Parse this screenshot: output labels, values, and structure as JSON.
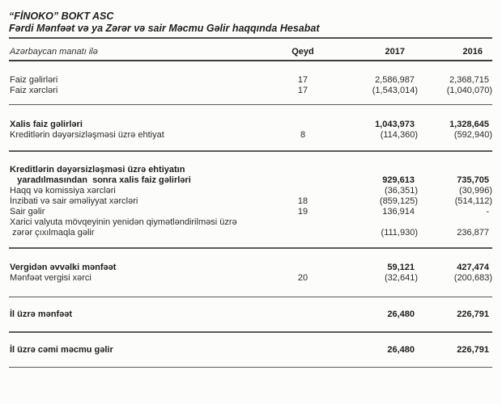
{
  "header": {
    "company": "“FİNOKO” BOKT ASC",
    "statement_title": "Fərdi Mənfəət və ya Zərər və sair Məcmu Gəlir haqqında Hesabat"
  },
  "table": {
    "columns": [
      "Azərbaycan manatı ilə",
      "Qeyd",
      "2017",
      "2016"
    ],
    "rows": [
      {
        "label": "Faiz gəlirləri",
        "qeyd": "17",
        "v2017": "2,586,987",
        "v2016": "2,368,715",
        "bold": false,
        "space_before": 17,
        "rule_after": false
      },
      {
        "label": "Faiz xərcləri",
        "qeyd": "17",
        "v2017": "(1,543,014)",
        "v2016": "(1,040,070)",
        "bold": false,
        "space_before": 0,
        "rule_after": true,
        "rule_gap": 10
      },
      {
        "label": "Xalis faiz gəlirləri",
        "qeyd": "",
        "v2017": "1,043,973",
        "v2016": "1,328,645",
        "bold": true,
        "space_before": 18,
        "rule_after": false
      },
      {
        "label": "Kreditlərin dəyərsizləşməsi üzrə ehtiyat",
        "qeyd": "8",
        "v2017": "(114,360)",
        "v2016": "(592,940)",
        "bold": false,
        "space_before": 0,
        "rule_after": true,
        "rule_gap": 12
      },
      {
        "label": "Kreditlərin dəyərsizləşməsi üzrə ehtiyatın\n   yaradılmasından  sonra xalis faiz gəlirləri",
        "qeyd": "",
        "v2017": "929,613",
        "v2016": "735,705",
        "bold": true,
        "space_before": 16,
        "rule_after": false
      },
      {
        "label": "Haqq və komissiya xərcləri",
        "qeyd": "",
        "v2017": "(36,351)",
        "v2016": "(30,996)",
        "bold": false,
        "space_before": 0,
        "rule_after": false
      },
      {
        "label": "İnzibati və sair əməliyyat xərcləri",
        "qeyd": "18",
        "v2017": "(859,125)",
        "v2016": "(514,112)",
        "bold": false,
        "space_before": 0,
        "rule_after": false
      },
      {
        "label": "Sair gəlir",
        "qeyd": "19",
        "v2017": "136,914",
        "v2016": "-",
        "bold": false,
        "space_before": 0,
        "rule_after": false
      },
      {
        "label": "Xarici valyuta mövqeyinin yenidən qiymətləndirilməsi üzrə\n zərər çıxılmaqla gəlir",
        "qeyd": "",
        "v2017": "(111,930)",
        "v2016": "236,877",
        "bold": false,
        "space_before": 0,
        "rule_after": true,
        "rule_gap": 11
      },
      {
        "label": "Vergidən əvvəlki mənfəət",
        "qeyd": "",
        "v2017": "59,121",
        "v2016": "427,474",
        "bold": true,
        "space_before": 17,
        "rule_after": false
      },
      {
        "label": "Mənfəət vergisi xərci",
        "qeyd": "20",
        "v2017": "(32,641)",
        "v2016": "(200,683)",
        "bold": false,
        "space_before": 0,
        "rule_after": true,
        "rule_gap": 16
      },
      {
        "label": "İl üzrə mənfəət",
        "qeyd": "",
        "v2017": "26,480",
        "v2016": "226,791",
        "bold": true,
        "space_before": 15,
        "rule_after": true,
        "rule_gap": 14
      },
      {
        "label": "İl üzrə cəmi məcmu gəlir",
        "qeyd": "",
        "v2017": "26,480",
        "v2016": "226,791",
        "bold": true,
        "space_before": 15,
        "rule_after": true,
        "rule_gap": 14
      }
    ]
  }
}
